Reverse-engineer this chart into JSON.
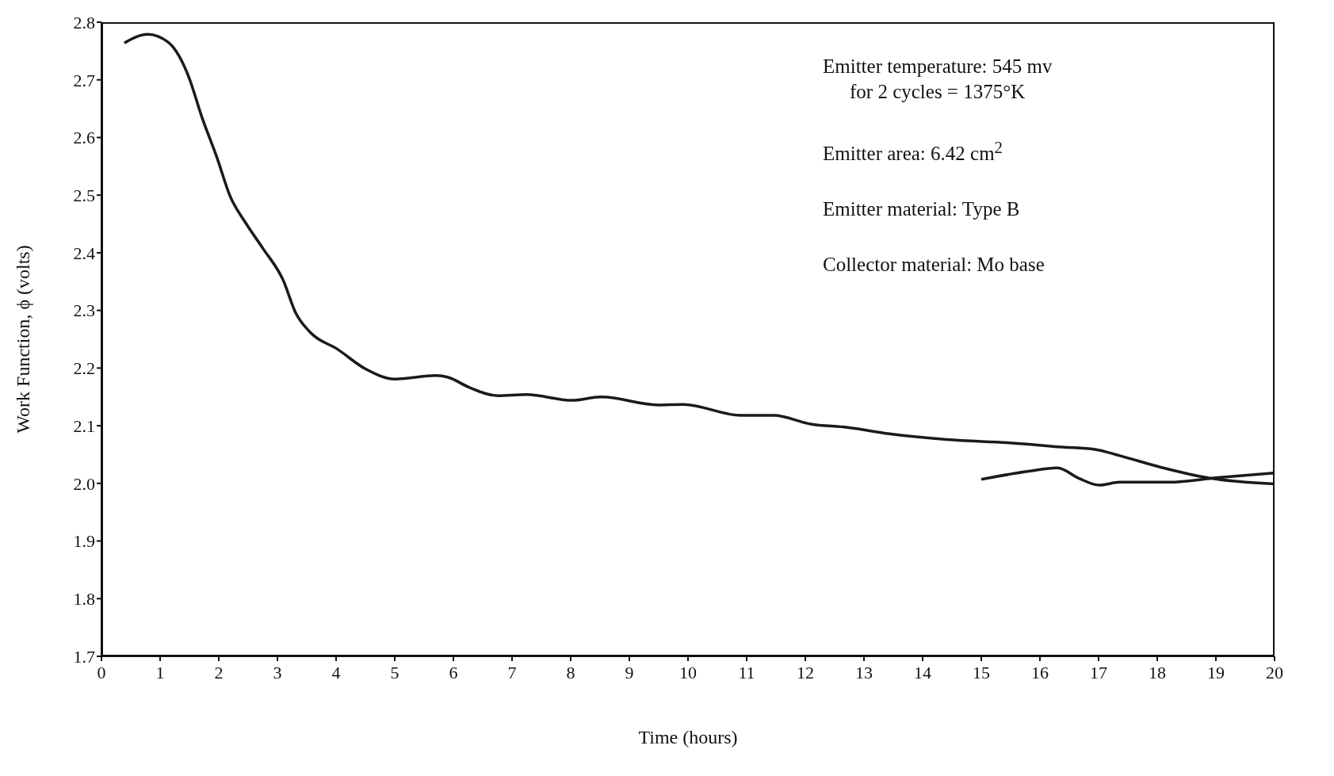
{
  "chart_data": {
    "type": "line",
    "xlabel": "Time (hours)",
    "ylabel": "Work Function,  ϕ (volts)",
    "xlim": [
      0,
      20
    ],
    "xticks": [
      0,
      1,
      2,
      3,
      4,
      5,
      6,
      7,
      8,
      9,
      10,
      11,
      12,
      13,
      14,
      15,
      16,
      17,
      18,
      19,
      20
    ],
    "ylim": [
      1.7,
      2.8
    ],
    "yticks": [
      1.7,
      1.8,
      1.9,
      {
        "value": 2,
        "label": "2.0"
      },
      2.1,
      2.2,
      2.3,
      2.4,
      2.5,
      2.6,
      2.7,
      2.8
    ],
    "grid": false,
    "marker": "none",
    "line_style": "solid",
    "annotations": [
      "Emitter temperature:  545 mv",
      "for 2 cycles = 1375°K",
      "Emitter area:  6.42 cm$^{2}$",
      "Emitter material:  Type B",
      "Collector material: Mo base"
    ],
    "series": [
      {
        "color": "#1a1a1a",
        "x": [
          0.39,
          0.79,
          1.14,
          1.5,
          1.7,
          1.98,
          2.19,
          2.47,
          2.75,
          3.1,
          3.31,
          3.57,
          4.02,
          4.51,
          5.0,
          5.7,
          5.91,
          6.26,
          6.76,
          7.25,
          8.02,
          8.51,
          9.49,
          9.92,
          10.9,
          11.46,
          12.09,
          12.72,
          13.43,
          14.41,
          15.53,
          16.38,
          16.94,
          17.36,
          18.06,
          18.9,
          20
        ],
        "values": [
          2.764,
          2.779,
          2.765,
          2.702,
          2.639,
          2.562,
          2.499,
          2.45,
          2.408,
          2.352,
          2.296,
          2.261,
          2.233,
          2.198,
          2.181,
          2.187,
          2.184,
          2.167,
          2.152,
          2.154,
          2.144,
          2.15,
          2.136,
          2.137,
          2.118,
          2.118,
          2.103,
          2.097,
          2.086,
          2.076,
          2.07,
          2.063,
          2.059,
          2.048,
          2.028,
          2.009,
          1.999
        ]
      },
      {
        "color": "#1a1a1a",
        "x": [
          15.0,
          15.81,
          16.3,
          16.66,
          17.01,
          17.36,
          18.2,
          19.04,
          20
        ],
        "values": [
          2.007,
          2.021,
          2.027,
          2.009,
          1.997,
          2.002,
          2.002,
          2.01,
          2.018
        ]
      }
    ]
  }
}
